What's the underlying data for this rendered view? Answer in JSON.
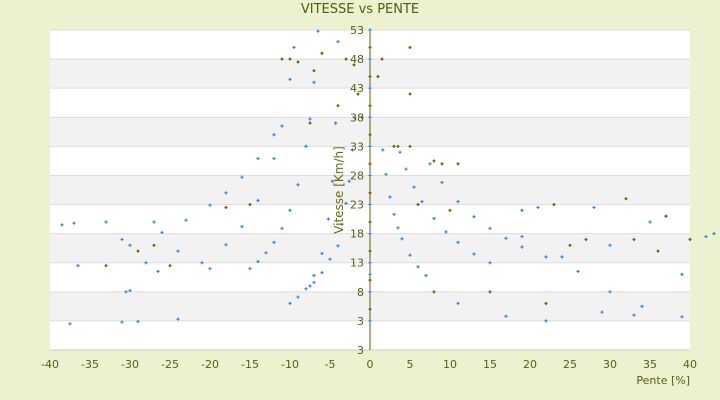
{
  "chart_data": {
    "type": "scatter",
    "title": "VITESSE vs PENTE",
    "xlabel": "Pente [%]",
    "ylabel": "Vitesse [Km/h]",
    "xlim": [
      -40,
      40
    ],
    "ylim": [
      -2,
      53
    ],
    "x_ticks": [
      "-40",
      "-35",
      "-30",
      "-25",
      "-20",
      "-15",
      "-10",
      "-5",
      "0",
      "5",
      "10",
      "15",
      "20",
      "25",
      "30",
      "35",
      "40"
    ],
    "y_ticks": [
      "53",
      "48",
      "43",
      "38",
      "33",
      "28",
      "23",
      "18",
      "13",
      "8",
      "3",
      "3"
    ],
    "grid": "horizontal bands",
    "legend": "none",
    "colors": {
      "background": "#ecf1cf",
      "band": "#f2f2f2",
      "series_blue": "#3a87d9",
      "series_olive": "#6e6a08"
    },
    "series": [
      {
        "color": "#3a87d9",
        "points": [
          [
            -1.9,
            37.9
          ],
          [
            -2.2,
            32.4
          ],
          [
            -2.6,
            27
          ],
          [
            -3,
            23.2
          ],
          [
            -3.5,
            19.6
          ],
          [
            -4,
            15.9
          ],
          [
            -5,
            13.6
          ],
          [
            -6,
            11.3
          ],
          [
            -7,
            9.6
          ],
          [
            -7.5,
            9
          ],
          [
            -4,
            51
          ],
          [
            -4.3,
            37
          ],
          [
            -4.7,
            27
          ],
          [
            -5.2,
            20.5
          ],
          [
            -6,
            14.6
          ],
          [
            -7,
            10.8
          ],
          [
            -8,
            8.5
          ],
          [
            -9,
            7.1
          ],
          [
            -10,
            6
          ],
          [
            -6.5,
            52.8
          ],
          [
            -7,
            44
          ],
          [
            -7.5,
            37.7
          ],
          [
            -8,
            33
          ],
          [
            -9,
            26.4
          ],
          [
            -10,
            22
          ],
          [
            -11,
            18.9
          ],
          [
            -12,
            16.5
          ],
          [
            -13,
            14.7
          ],
          [
            -14,
            13.2
          ],
          [
            -15,
            12
          ],
          [
            -9.5,
            50
          ],
          [
            -10,
            44.5
          ],
          [
            -11,
            36.5
          ],
          [
            -12,
            30.9
          ],
          [
            -14,
            23.7
          ],
          [
            -16,
            19.2
          ],
          [
            -18,
            16.1
          ],
          [
            -21,
            13
          ],
          [
            -12,
            35
          ],
          [
            -14,
            30.9
          ],
          [
            -16,
            27.7
          ],
          [
            -18,
            25
          ],
          [
            -20,
            22.9
          ],
          [
            -23,
            20.3
          ],
          [
            -26,
            18.2
          ],
          [
            -30,
            16
          ],
          [
            1.6,
            32.4
          ],
          [
            2,
            28.2
          ],
          [
            2.5,
            24.3
          ],
          [
            3,
            21.3
          ],
          [
            3.5,
            19
          ],
          [
            4,
            17.1
          ],
          [
            5,
            14.3
          ],
          [
            6,
            12.3
          ],
          [
            7,
            10.8
          ],
          [
            3.75,
            32
          ],
          [
            4.5,
            29.1
          ],
          [
            5.5,
            26
          ],
          [
            6.5,
            23.5
          ],
          [
            8,
            20.6
          ],
          [
            9.5,
            18.3
          ],
          [
            11,
            16.5
          ],
          [
            13,
            14.5
          ],
          [
            15,
            13
          ],
          [
            7.5,
            30
          ],
          [
            9,
            26.8
          ],
          [
            11,
            23.5
          ],
          [
            13,
            20.9
          ],
          [
            15,
            18.9
          ],
          [
            17,
            17.2
          ],
          [
            19,
            15.7
          ],
          [
            22,
            14
          ],
          [
            0,
            3
          ],
          [
            0,
            8
          ],
          [
            0,
            11
          ],
          [
            0,
            13
          ],
          [
            0,
            18
          ],
          [
            0,
            23
          ],
          [
            0,
            28
          ],
          [
            0,
            33
          ],
          [
            0,
            38
          ],
          [
            0,
            43
          ],
          [
            0,
            48
          ],
          [
            0,
            53
          ],
          [
            -37.5,
            2.5
          ],
          [
            -31,
            2.8
          ],
          [
            -29,
            2.9
          ],
          [
            -24,
            3.3
          ],
          [
            -38.5,
            19.5
          ],
          [
            -37,
            19.8
          ],
          [
            -33,
            20
          ],
          [
            -36.5,
            12.5
          ],
          [
            -30.5,
            8
          ],
          [
            -30,
            8.2
          ],
          [
            -27,
            20
          ],
          [
            -26.5,
            11.5
          ],
          [
            -31,
            17
          ],
          [
            -20,
            12
          ],
          [
            -28,
            13
          ],
          [
            -24,
            15
          ],
          [
            29,
            4.5
          ],
          [
            33,
            4
          ],
          [
            39,
            3.7
          ],
          [
            30,
            8
          ],
          [
            39,
            11
          ],
          [
            34,
            5.5
          ],
          [
            28,
            22.5
          ],
          [
            35,
            20
          ],
          [
            22,
            3
          ],
          [
            17,
            3.8
          ],
          [
            11,
            6
          ],
          [
            37,
            21
          ],
          [
            30,
            16
          ],
          [
            26,
            11.5
          ],
          [
            24,
            14
          ],
          [
            19,
            17.5
          ],
          [
            21,
            22.5
          ],
          [
            19,
            22
          ],
          [
            42,
            17.5
          ],
          [
            43,
            18
          ]
        ]
      },
      {
        "color": "#6e6a08",
        "points": [
          [
            -11,
            48
          ],
          [
            -7,
            46
          ],
          [
            -9,
            47.5
          ],
          [
            -6,
            49
          ],
          [
            -2,
            47
          ],
          [
            1,
            45
          ],
          [
            1.5,
            48
          ],
          [
            5,
            50
          ],
          [
            5,
            33
          ],
          [
            8,
            30.5
          ],
          [
            9,
            30
          ],
          [
            11,
            30
          ],
          [
            5,
            42
          ],
          [
            6,
            23
          ],
          [
            10,
            22
          ],
          [
            15,
            8
          ],
          [
            22,
            6
          ],
          [
            32,
            24
          ],
          [
            37,
            21
          ],
          [
            44,
            24
          ],
          [
            40,
            17
          ],
          [
            36,
            15
          ],
          [
            33,
            17
          ],
          [
            27,
            17
          ],
          [
            23,
            23
          ],
          [
            25,
            16
          ],
          [
            -27,
            16
          ],
          [
            -29,
            15
          ],
          [
            -33,
            12.5
          ],
          [
            -25,
            12.5
          ],
          [
            -18,
            22.5
          ],
          [
            -15,
            23
          ],
          [
            -10,
            48
          ],
          [
            -7.5,
            37
          ],
          [
            -4,
            40
          ],
          [
            -3,
            48
          ],
          [
            -1.5,
            42
          ],
          [
            -1,
            38
          ],
          [
            8,
            8
          ],
          [
            3,
            33
          ],
          [
            3.5,
            33
          ],
          [
            0,
            5
          ],
          [
            0,
            10
          ],
          [
            0,
            15
          ],
          [
            0,
            20
          ],
          [
            0,
            25
          ],
          [
            0,
            30
          ],
          [
            0,
            35
          ],
          [
            0,
            40
          ],
          [
            0,
            45
          ],
          [
            0,
            50
          ]
        ]
      }
    ]
  }
}
